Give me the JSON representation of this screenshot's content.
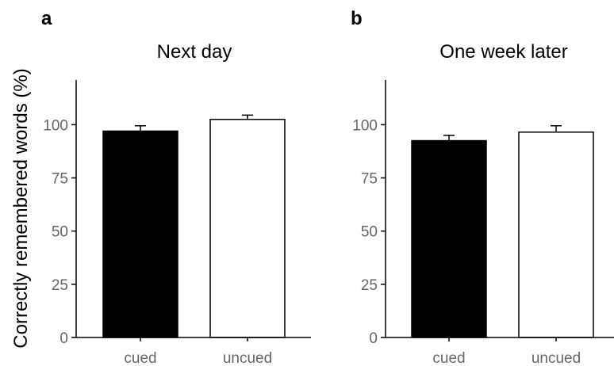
{
  "ylabel": "Correctly remembered words (%)",
  "chart_data": [
    {
      "type": "bar",
      "panel": "a",
      "title": "Next day",
      "categories": [
        "cued",
        "uncued"
      ],
      "values": [
        97,
        102.5
      ],
      "errors": [
        2.5,
        2
      ],
      "colors": [
        "#000000",
        "#ffffff"
      ],
      "yticks": [
        0,
        25,
        50,
        75,
        100
      ],
      "ylim": [
        0,
        121
      ],
      "grid": false
    },
    {
      "type": "bar",
      "panel": "b",
      "title": "One week later",
      "categories": [
        "cued",
        "uncued"
      ],
      "values": [
        92.5,
        96.5
      ],
      "errors": [
        2.5,
        3
      ],
      "colors": [
        "#000000",
        "#ffffff"
      ],
      "yticks": [
        0,
        25,
        50,
        75,
        100
      ],
      "ylim": [
        0,
        121
      ],
      "grid": false
    }
  ]
}
